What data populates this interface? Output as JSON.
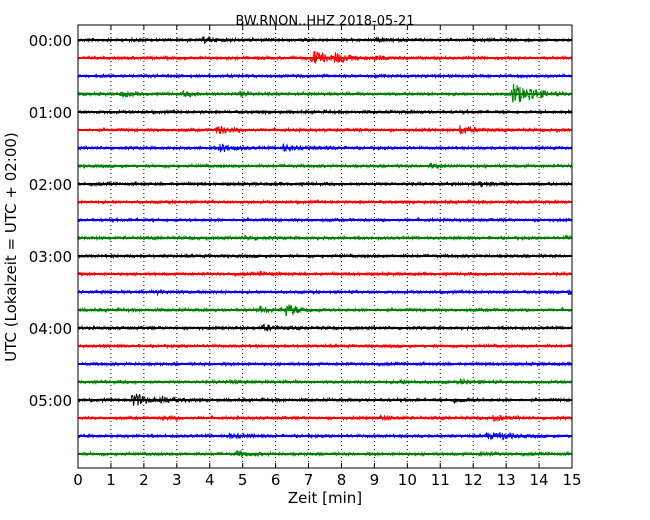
{
  "chart_data": {
    "type": "line",
    "title": "BW.RNON..HHZ 2018-05-21",
    "xlabel": "Zeit  [min]",
    "ylabel": "UTC (Lokalzeit = UTC + 02:00)",
    "xlim": [
      0,
      15
    ],
    "x_ticks": [
      "0",
      "1",
      "2",
      "3",
      "4",
      "5",
      "6",
      "7",
      "8",
      "9",
      "10",
      "11",
      "12",
      "13",
      "14",
      "15"
    ],
    "y_ticks": [
      "00:00",
      "01:00",
      "02:00",
      "03:00",
      "04:00",
      "05:00"
    ],
    "grid": "vertical dotted",
    "series_colors": [
      "#000000",
      "#ff0000",
      "#0000ff",
      "#008000"
    ],
    "traces_count_per_hour": 4,
    "series": [
      {
        "time": "00:00",
        "color": "#000000",
        "events": [
          {
            "t": 3.8,
            "amp": 0.15
          },
          {
            "t": 9.1,
            "amp": 0.1
          }
        ]
      },
      {
        "time": "00:15",
        "color": "#ff0000",
        "events": [
          {
            "t": 7.1,
            "amp": 0.6
          },
          {
            "t": 7.8,
            "amp": 0.35
          },
          {
            "t": 9.0,
            "amp": 0.15
          }
        ]
      },
      {
        "time": "00:30",
        "color": "#0000ff",
        "events": []
      },
      {
        "time": "00:45",
        "color": "#008000",
        "events": [
          {
            "t": 1.3,
            "amp": 0.15
          },
          {
            "t": 3.2,
            "amp": 0.15
          },
          {
            "t": 4.9,
            "amp": 0.15
          },
          {
            "t": 13.2,
            "amp": 0.9
          },
          {
            "t": 13.7,
            "amp": 0.3
          }
        ]
      },
      {
        "time": "01:00",
        "color": "#000000",
        "events": []
      },
      {
        "time": "01:15",
        "color": "#ff0000",
        "events": [
          {
            "t": 4.2,
            "amp": 0.3
          },
          {
            "t": 11.6,
            "amp": 0.3
          }
        ]
      },
      {
        "time": "01:30",
        "color": "#0000ff",
        "events": [
          {
            "t": 4.3,
            "amp": 0.3
          },
          {
            "t": 6.2,
            "amp": 0.25
          },
          {
            "t": 7.3,
            "amp": 0.1
          }
        ]
      },
      {
        "time": "01:45",
        "color": "#008000",
        "events": [
          {
            "t": 10.7,
            "amp": 0.15
          }
        ]
      },
      {
        "time": "02:00",
        "color": "#000000",
        "events": [
          {
            "t": 12.2,
            "amp": 0.15
          }
        ]
      },
      {
        "time": "02:15",
        "color": "#ff0000",
        "events": []
      },
      {
        "time": "02:30",
        "color": "#0000ff",
        "events": []
      },
      {
        "time": "02:45",
        "color": "#008000",
        "events": [
          {
            "t": 5.0,
            "amp": 0.1
          },
          {
            "t": 14.8,
            "amp": 0.1
          }
        ]
      },
      {
        "time": "03:00",
        "color": "#000000",
        "events": []
      },
      {
        "time": "03:15",
        "color": "#ff0000",
        "events": [
          {
            "t": 5.5,
            "amp": 0.1
          }
        ]
      },
      {
        "time": "03:30",
        "color": "#0000ff",
        "events": [
          {
            "t": 2.4,
            "amp": 0.1
          },
          {
            "t": 14.9,
            "amp": 0.2
          }
        ]
      },
      {
        "time": "03:45",
        "color": "#008000",
        "events": [
          {
            "t": 6.3,
            "amp": 0.45
          },
          {
            "t": 5.5,
            "amp": 0.2
          }
        ]
      },
      {
        "time": "04:00",
        "color": "#000000",
        "events": [
          {
            "t": 5.6,
            "amp": 0.2
          }
        ]
      },
      {
        "time": "04:15",
        "color": "#ff0000",
        "events": []
      },
      {
        "time": "04:30",
        "color": "#0000ff",
        "events": []
      },
      {
        "time": "04:45",
        "color": "#008000",
        "events": [
          {
            "t": 4.6,
            "amp": 0.1
          },
          {
            "t": 9.7,
            "amp": 0.1
          },
          {
            "t": 11.6,
            "amp": 0.15
          }
        ]
      },
      {
        "time": "05:00",
        "color": "#000000",
        "events": [
          {
            "t": 1.65,
            "amp": 0.55
          },
          {
            "t": 2.5,
            "amp": 0.2
          },
          {
            "t": 11.4,
            "amp": 0.15
          }
        ]
      },
      {
        "time": "05:15",
        "color": "#ff0000",
        "events": [
          {
            "t": 2.6,
            "amp": 0.1
          },
          {
            "t": 9.2,
            "amp": 0.15
          },
          {
            "t": 12.6,
            "amp": 0.2
          }
        ]
      },
      {
        "time": "05:30",
        "color": "#0000ff",
        "events": [
          {
            "t": 4.6,
            "amp": 0.15
          },
          {
            "t": 12.4,
            "amp": 0.2
          },
          {
            "t": 12.8,
            "amp": 0.2
          }
        ]
      },
      {
        "time": "05:45",
        "color": "#008000",
        "events": [
          {
            "t": 4.8,
            "amp": 0.2
          },
          {
            "t": 12.2,
            "amp": 0.1
          }
        ]
      }
    ]
  }
}
